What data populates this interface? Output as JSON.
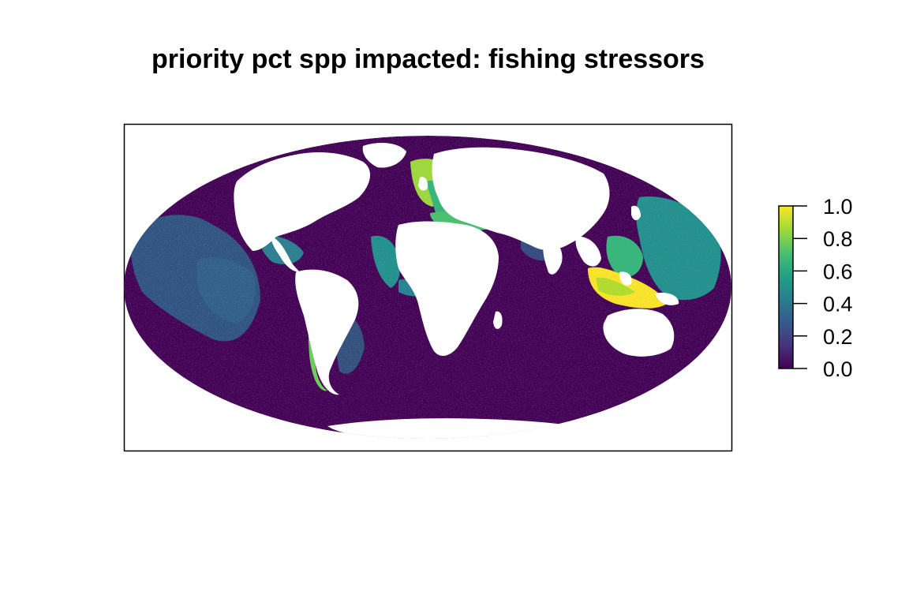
{
  "title": "priority pct spp impacted: fishing stressors",
  "legend": {
    "ticks": [
      "0.0",
      "0.2",
      "0.4",
      "0.6",
      "0.8",
      "1.0"
    ],
    "min": 0,
    "max": 1,
    "colors": [
      "#440154",
      "#46337e",
      "#365c8d",
      "#277f8e",
      "#1fa187",
      "#4ac16d",
      "#9fda3a",
      "#fde725"
    ]
  },
  "map": {
    "projection": "Mollweide",
    "background_value": 0.05,
    "hotspots": [
      {
        "region": "Indonesia / Coral Triangle",
        "value": 0.95
      },
      {
        "region": "North Sea / NE Atlantic shelf",
        "value": 0.85
      },
      {
        "region": "Mediterranean",
        "value": 0.6
      },
      {
        "region": "West Africa shelf",
        "value": 0.5
      },
      {
        "region": "Western Pacific",
        "value": 0.45
      },
      {
        "region": "South China Sea",
        "value": 0.6
      },
      {
        "region": "Eastern Pacific",
        "value": 0.35
      },
      {
        "region": "Caribbean",
        "value": 0.35
      },
      {
        "region": "South American Pacific coast",
        "value": 0.8
      }
    ]
  }
}
